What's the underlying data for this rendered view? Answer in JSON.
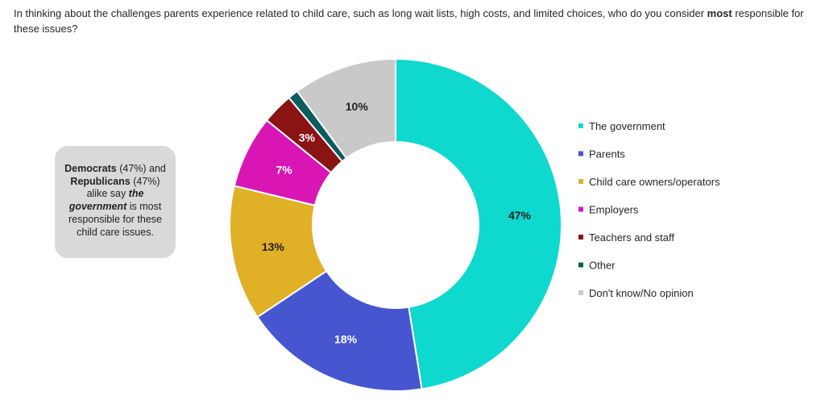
{
  "question": {
    "text_before": "In thinking about the challenges parents experience related to child care, such as long wait lists, high costs, and limited choices, who do you consider ",
    "bold": "most",
    "text_after": " responsible for these issues?"
  },
  "callout": {
    "bold_1": "Democrats",
    "text_1": " (47%) and ",
    "bold_2": "Republicans",
    "text_2": " (47%) alike say ",
    "bold_italic": "the government",
    "text_3": " is most responsible for these child care issues."
  },
  "chart_data": {
    "type": "pie",
    "subtype": "donut",
    "categories": [
      "The government",
      "Parents",
      "Child care owners/operators",
      "Employers",
      "Teachers and staff",
      "Other",
      "Don't know/No opinion"
    ],
    "values": [
      47,
      18,
      13,
      7,
      3,
      1,
      10
    ],
    "labels": [
      "47%",
      "18%",
      "13%",
      "7%",
      "3%",
      "",
      "10%"
    ],
    "colors": [
      "#0fd8cf",
      "#4656d0",
      "#e0b027",
      "#d916b4",
      "#8a1313",
      "#0d5c5e",
      "#c9c9c9"
    ],
    "label_colors": [
      "#222222",
      "#ffffff",
      "#222222",
      "#ffffff",
      "#ffffff",
      "#ffffff",
      "#222222"
    ],
    "legend_position": "right"
  }
}
